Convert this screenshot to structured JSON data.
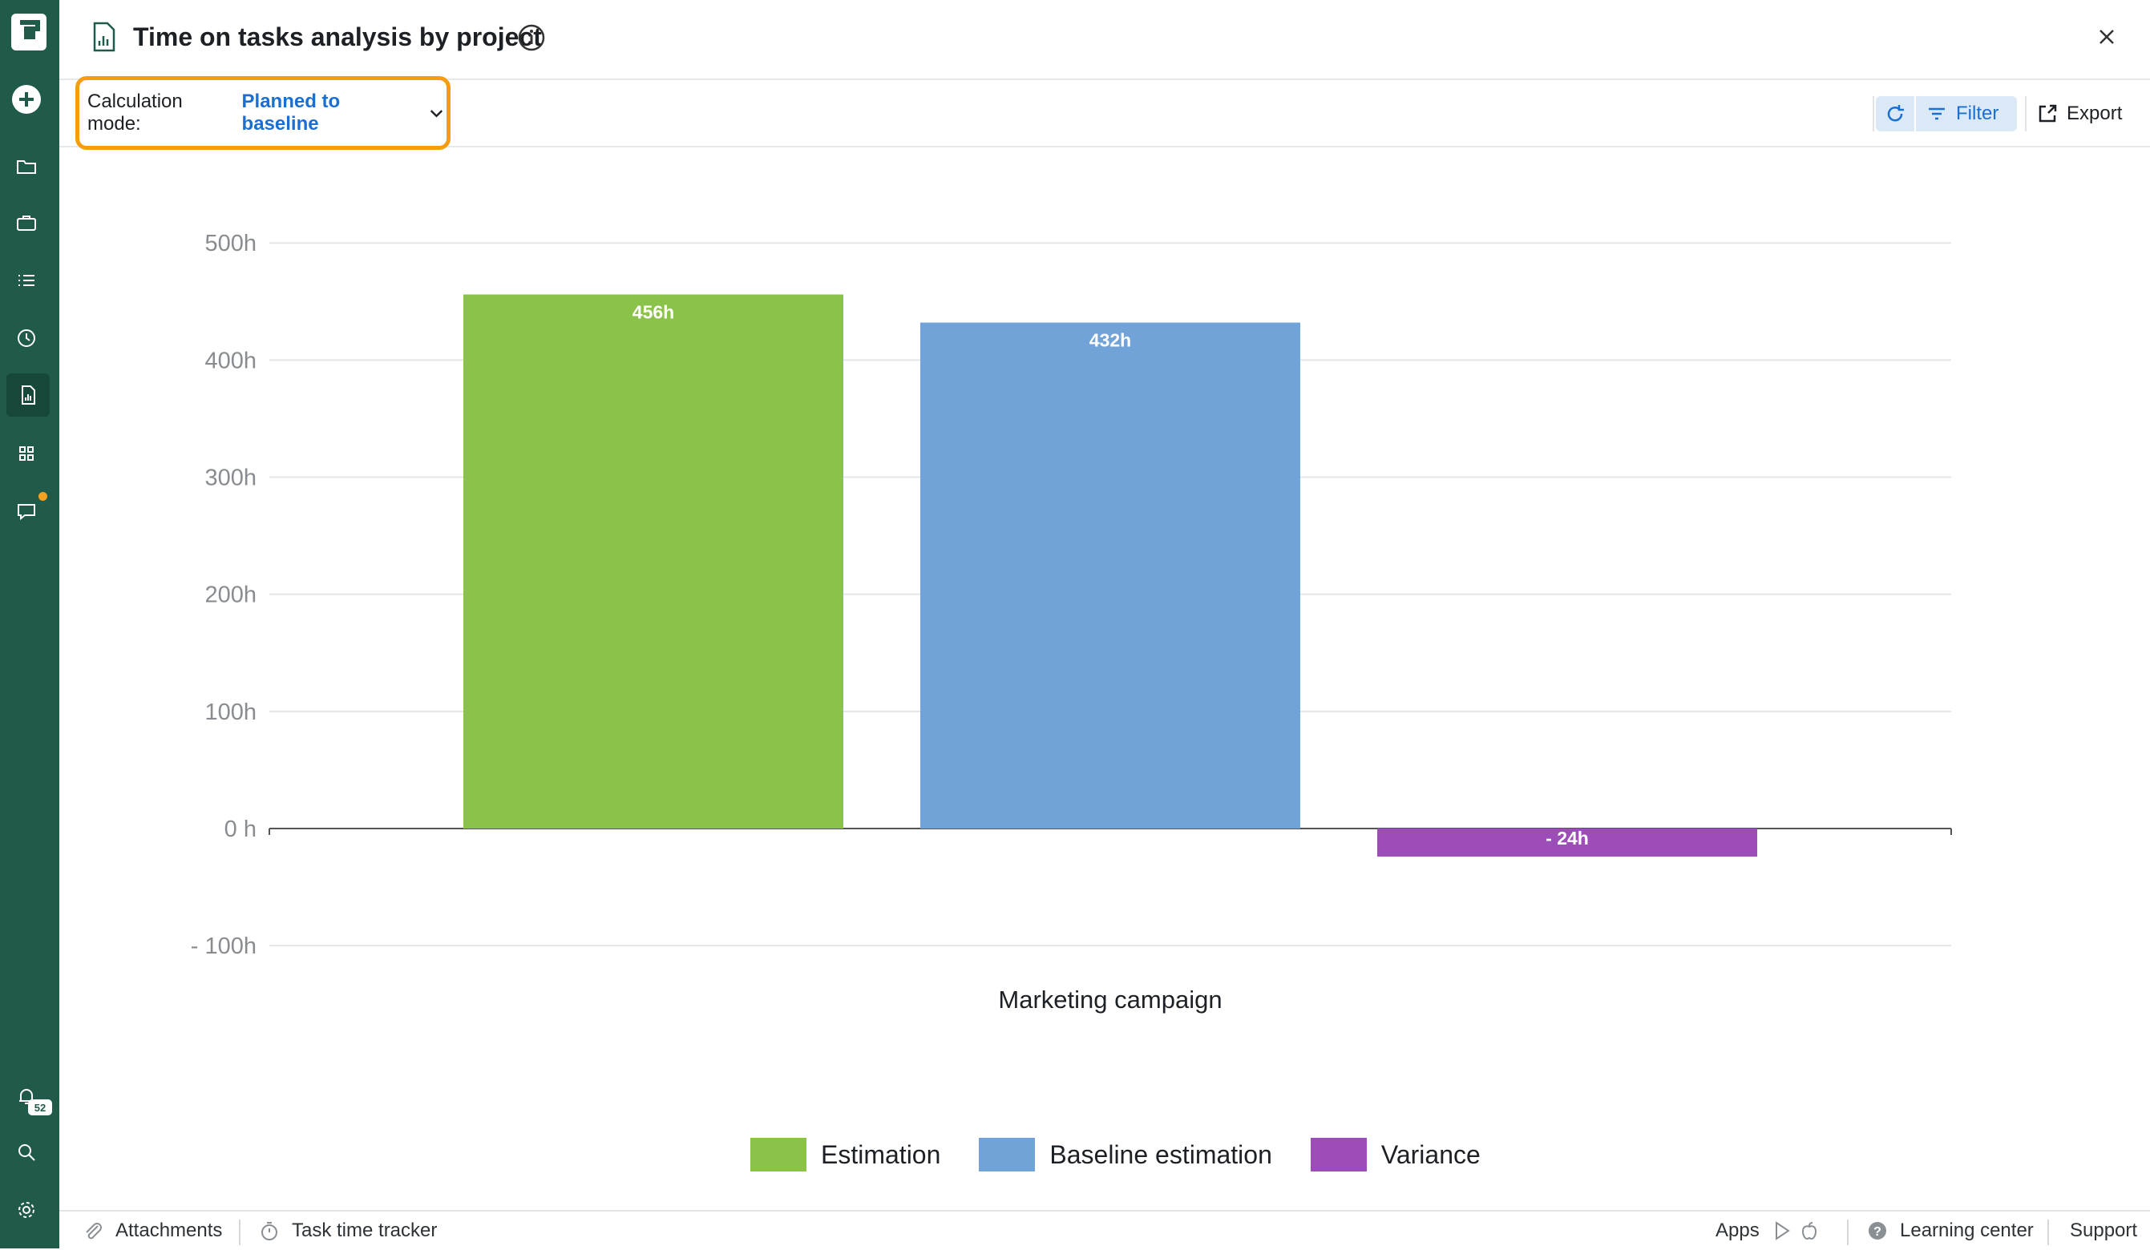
{
  "header": {
    "title": "Time on tasks analysis by project"
  },
  "toolbar": {
    "calc_label": "Calculation mode:",
    "calc_value": "Planned to baseline",
    "filter_label": "Filter",
    "export_label": "Export"
  },
  "sidebar": {
    "notification_count": "52",
    "items": [
      "create-icon",
      "folder-icon",
      "briefcase-icon",
      "list-icon",
      "clock-icon",
      "report-icon",
      "apps-grid-icon",
      "chat-icon"
    ]
  },
  "colors": {
    "sidebar": "#1f5a4a",
    "estimation": "#8bc34a",
    "baseline": "#72a3d8",
    "variance": "#9c4db8",
    "highlight": "#f59d10",
    "accent": "#1a6fd1"
  },
  "chart_data": {
    "type": "bar",
    "title": "",
    "categories": [
      "Marketing campaign"
    ],
    "series": [
      {
        "name": "Estimation",
        "values": [
          456
        ],
        "label": "456h",
        "color": "#8bc34a"
      },
      {
        "name": "Baseline estimation",
        "values": [
          432
        ],
        "label": "432h",
        "color": "#72a3d8"
      },
      {
        "name": "Variance",
        "values": [
          -24
        ],
        "label": "- 24h",
        "color": "#9c4db8"
      }
    ],
    "ylim": [
      -100,
      500
    ],
    "yticks": [
      500,
      400,
      300,
      200,
      100,
      0,
      -100
    ],
    "ytick_labels": [
      "500h",
      "400h",
      "300h",
      "200h",
      "100h",
      "0 h",
      "- 100h"
    ],
    "xlabel": "",
    "ylabel": "",
    "grid": true,
    "legend_position": "bottom-center"
  },
  "legend": {
    "items": [
      {
        "label": "Estimation"
      },
      {
        "label": "Baseline estimation"
      },
      {
        "label": "Variance"
      }
    ]
  },
  "footer": {
    "attachments": "Attachments",
    "task_time_tracker": "Task time tracker",
    "apps": "Apps",
    "learning_center": "Learning center",
    "support": "Support"
  }
}
